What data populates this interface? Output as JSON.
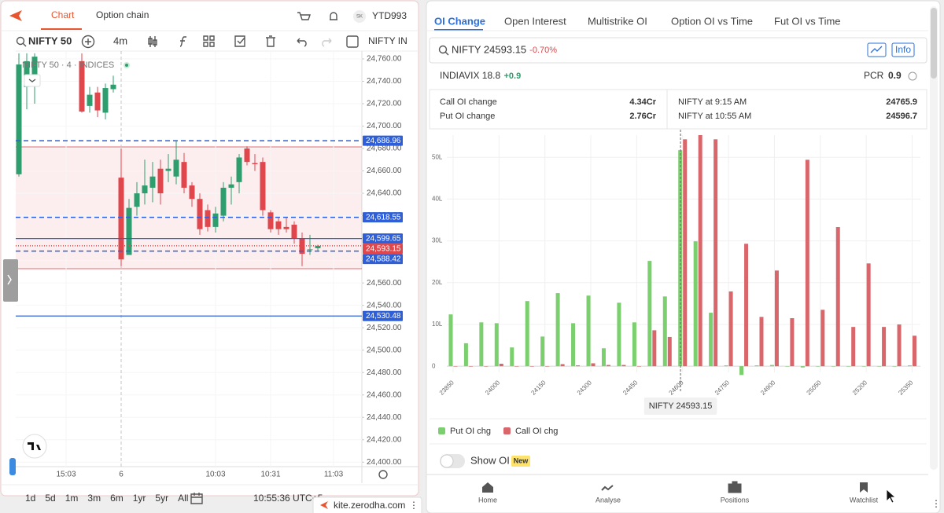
{
  "left": {
    "tabs": [
      "Chart",
      "Option chain"
    ],
    "avatar": "SK",
    "user": "YTD993",
    "symbol": "NIFTY 50",
    "interval": "4m",
    "compare": "NIFTY IN",
    "legend": "NIFTY 50 · 4 · INDICES",
    "ranges": [
      "1d",
      "5d",
      "1m",
      "3m",
      "6m",
      "1yr",
      "5yr",
      "All"
    ],
    "clock": "10:55:36 UTC+5"
  },
  "browser_url": "kite.zerodha.com",
  "right": {
    "tabs": [
      "OI Change",
      "Open Interest",
      "Multistrike OI",
      "Option OI vs Time",
      "Fut OI vs Time"
    ],
    "search": {
      "symbol": "NIFTY 24593.15",
      "change": "-0.70%",
      "button": "Info"
    },
    "vix": {
      "label": "INDIAVIX 18.8",
      "change": "+0.9"
    },
    "pcr": {
      "label": "PCR",
      "value": "0.9"
    },
    "stats": [
      [
        {
          "label": "Call OI change",
          "value": "4.34Cr"
        },
        {
          "label": "NIFTY at 9:15 AM",
          "value": "24765.9"
        }
      ],
      [
        {
          "label": "Put OI change",
          "value": "2.76Cr"
        },
        {
          "label": "NIFTY at 10:55 AM",
          "value": "24596.7"
        }
      ]
    ],
    "toggle": {
      "label": "Show OI",
      "badge": "New"
    },
    "nav": [
      "Home",
      "Analyse",
      "Positions",
      "Watchlist"
    ]
  },
  "chart_data": [
    {
      "type": "candlestick",
      "x": [
        0,
        1,
        2,
        8,
        9,
        10,
        11,
        12,
        13,
        14,
        15,
        16,
        17,
        18,
        19,
        20,
        21,
        22,
        23,
        24,
        25,
        26,
        27,
        28,
        29,
        30,
        31,
        32,
        33,
        34,
        35,
        36,
        37,
        38
      ],
      "open": [
        24657,
        24735,
        24745,
        24758,
        24718,
        24730,
        24712,
        24733,
        24654,
        24585,
        24628,
        24640,
        24645,
        24662,
        24660,
        24655,
        24668,
        24647,
        24635,
        24625,
        24610,
        24620,
        24645,
        24650,
        24680,
        24667,
        24668,
        24623,
        24615,
        24610,
        24612,
        24600,
        24590,
        24591
      ],
      "high": [
        24765,
        24765,
        24765,
        24765,
        24735,
        24735,
        24738,
        24745,
        24680,
        24635,
        24650,
        24670,
        24668,
        24670,
        24675,
        24687,
        24676,
        24650,
        24640,
        24630,
        24628,
        24650,
        24655,
        24675,
        24682,
        24675,
        24672,
        24625,
        24618,
        24618,
        24615,
        24605,
        24603,
        24594
      ],
      "low": [
        24655,
        24715,
        24720,
        24712,
        24712,
        24708,
        24706,
        24730,
        24575,
        24588,
        24620,
        24630,
        24632,
        24630,
        24650,
        24648,
        24640,
        24628,
        24603,
        24606,
        24605,
        24615,
        24630,
        24640,
        24665,
        24660,
        24620,
        24605,
        24603,
        24605,
        24595,
        24575,
        24585,
        24589
      ],
      "close": [
        24755,
        24758,
        24762,
        24713,
        24728,
        24714,
        24734,
        24737,
        24581,
        24627,
        24640,
        24647,
        24655,
        24640,
        24662,
        24670,
        24645,
        24635,
        24608,
        24610,
        24622,
        24645,
        24648,
        24672,
        24668,
        24666,
        24625,
        24608,
        24608,
        24608,
        24600,
        24586,
        24590,
        24593.15
      ],
      "up_color": "#2f9e6e",
      "down_color": "#e0474c",
      "xlim": [
        -0.4,
        43.6
      ],
      "xticks": [
        {
          "value": 6,
          "label": "15:03"
        },
        {
          "value": 13,
          "label": "6"
        },
        {
          "value": 25,
          "label": "10:03"
        },
        {
          "value": 32,
          "label": "10:31"
        },
        {
          "value": 40,
          "label": "11:03"
        }
      ],
      "ylim": [
        24396,
        24767
      ],
      "yticks": [
        {
          "value": 24760,
          "label": "24,760.00"
        },
        {
          "value": 24740,
          "label": "24,740.00"
        },
        {
          "value": 24720,
          "label": "24,720.00"
        },
        {
          "value": 24700,
          "label": "24,700.00"
        },
        {
          "value": 24680,
          "label": "24,680.00"
        },
        {
          "value": 24660,
          "label": "24,660.00"
        },
        {
          "value": 24640,
          "label": "24,640.00"
        },
        {
          "value": 24620,
          "label": "24,620.00"
        },
        {
          "value": 24600,
          "label": "24,600.00"
        },
        {
          "value": 24580,
          "label": "24,580.00"
        },
        {
          "value": 24560,
          "label": "24,560.00"
        },
        {
          "value": 24540,
          "label": "24,540.00"
        },
        {
          "value": 24520,
          "label": "24,520.00"
        },
        {
          "value": 24500,
          "label": "24,500.00"
        },
        {
          "value": 24480,
          "label": "24,480.00"
        },
        {
          "value": 24460,
          "label": "24,460.00"
        },
        {
          "value": 24440,
          "label": "24,440.00"
        },
        {
          "value": 24420,
          "label": "24,420.00"
        },
        {
          "value": 24400,
          "label": "24,400.00"
        }
      ],
      "grid": true,
      "band": {
        "values": [
          24572.7,
          24681.4
        ],
        "color": "#e0474c"
      },
      "levels": {
        "values": [
          24686.96,
          24618.55,
          24599.65,
          24593.15,
          24588.42,
          24530.48
        ],
        "value_labels": [
          "24,686.96",
          "24,618.55",
          "24,599.65",
          "24,593.15",
          "24,588.42",
          "24,530.48"
        ],
        "colors": [
          "#2f5fd8",
          "#2f5fd8",
          "#2f5fd8",
          "#e0474c",
          "#2f5fd8",
          "#2f5fd8"
        ],
        "styles": [
          "dashed",
          "dashed",
          "solid",
          "dotted",
          "dashed",
          "solid"
        ]
      }
    },
    {
      "type": "bar",
      "x": [
        23850,
        23900,
        23950,
        24000,
        24050,
        24100,
        24150,
        24200,
        24250,
        24300,
        24350,
        24400,
        24450,
        24500,
        24550,
        24600,
        24650,
        24700,
        24750,
        24800,
        24850,
        24900,
        24950,
        25000,
        25050,
        25100,
        25150,
        25200,
        25250,
        25300,
        25350
      ],
      "series": [
        {
          "name": "Put OI chg",
          "color": "#7ccf6e",
          "values": [
            12.4,
            5.5,
            10.5,
            10.3,
            4.5,
            15.6,
            7.1,
            17.5,
            10.3,
            16.9,
            4.3,
            15.2,
            10.5,
            25.2,
            16.7,
            51.7,
            29.9,
            12.8,
            0.2,
            -2.1,
            0.2,
            0.3,
            0,
            -0.3,
            0,
            0,
            0,
            0,
            0,
            0,
            0.2
          ]
        },
        {
          "name": "Call OI chg",
          "color": "#d9666a",
          "values": [
            0,
            0,
            0,
            0.6,
            0,
            0,
            0,
            0.5,
            0.2,
            0.7,
            0.3,
            0.3,
            0,
            8.6,
            7.0,
            54.3,
            55.3,
            54.3,
            17.9,
            29.3,
            11.8,
            22.9,
            11.5,
            49.4,
            13.5,
            33.3,
            9.4,
            24.6,
            9.4,
            10.0,
            7.3
          ]
        }
      ],
      "xlim": [
        23809,
        25377
      ],
      "xticks": [
        23850,
        24000,
        24150,
        24300,
        24450,
        24600,
        24750,
        24900,
        25050,
        25200,
        25350
      ],
      "ylim": [
        -2.6,
        55.3
      ],
      "yticks": [
        0,
        {
          "value": 10,
          "label": "10L"
        },
        {
          "value": 20,
          "label": "20L"
        },
        {
          "value": 30,
          "label": "30L"
        },
        {
          "value": 40,
          "label": "40L"
        },
        {
          "value": 50,
          "label": "50L"
        }
      ],
      "grid": true,
      "annotation": {
        "x": 24593.15,
        "label": "NIFTY 24593.15"
      }
    }
  ]
}
